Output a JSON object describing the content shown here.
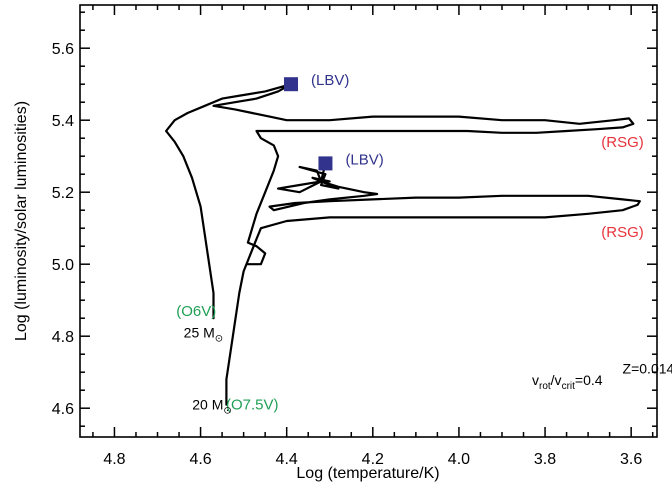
{
  "chart_data": {
    "type": "line",
    "title": "",
    "xlabel": "Log (temperature/K)",
    "ylabel": "Log (luminosity/solar luminosities)",
    "xlim": [
      4.88,
      3.54
    ],
    "ylim": [
      4.52,
      5.72
    ],
    "x_inverted": true,
    "x_ticks": [
      "4.8",
      "4.6",
      "4.4",
      "4.2",
      "4.0",
      "3.8",
      "3.6"
    ],
    "y_ticks": [
      "4.6",
      "4.8",
      "5.0",
      "5.2",
      "5.4",
      "5.6"
    ],
    "legend": "none",
    "series": [
      {
        "name": "25 M⊙",
        "points": [
          [
            4.57,
            4.85
          ],
          [
            4.57,
            4.92
          ],
          [
            4.58,
            5.0
          ],
          [
            4.59,
            5.08
          ],
          [
            4.6,
            5.16
          ],
          [
            4.62,
            5.24
          ],
          [
            4.64,
            5.3
          ],
          [
            4.66,
            5.34
          ],
          [
            4.68,
            5.37
          ],
          [
            4.66,
            5.4
          ],
          [
            4.63,
            5.42
          ],
          [
            4.59,
            5.44
          ],
          [
            4.55,
            5.46
          ],
          [
            4.5,
            5.47
          ],
          [
            4.45,
            5.48
          ],
          [
            4.42,
            5.49
          ],
          [
            4.39,
            5.5
          ],
          [
            4.42,
            5.48
          ],
          [
            4.47,
            5.46
          ],
          [
            4.52,
            5.45
          ],
          [
            4.57,
            5.44
          ],
          [
            4.52,
            5.43
          ],
          [
            4.48,
            5.42
          ],
          [
            4.44,
            5.41
          ],
          [
            4.4,
            5.4
          ],
          [
            4.3,
            5.4
          ],
          [
            4.2,
            5.41
          ],
          [
            4.1,
            5.41
          ],
          [
            4.0,
            5.41
          ],
          [
            3.9,
            5.4
          ],
          [
            3.8,
            5.4
          ],
          [
            3.72,
            5.39
          ],
          [
            3.64,
            5.4
          ],
          [
            3.605,
            5.405
          ],
          [
            3.595,
            5.39
          ],
          [
            3.62,
            5.38
          ],
          [
            3.68,
            5.375
          ],
          [
            3.75,
            5.37
          ],
          [
            3.82,
            5.365
          ],
          [
            3.9,
            5.365
          ],
          [
            3.98,
            5.37
          ],
          [
            4.06,
            5.37
          ],
          [
            4.14,
            5.37
          ],
          [
            4.22,
            5.37
          ],
          [
            4.3,
            5.37
          ],
          [
            4.38,
            5.37
          ],
          [
            4.44,
            5.37
          ],
          [
            4.47,
            5.37
          ],
          [
            4.46,
            5.35
          ],
          [
            4.43,
            5.33
          ],
          [
            4.42,
            5.3
          ],
          [
            4.43,
            5.26
          ],
          [
            4.45,
            5.2
          ],
          [
            4.47,
            5.14
          ],
          [
            4.48,
            5.1
          ],
          [
            4.49,
            5.06
          ],
          [
            4.47,
            5.05
          ],
          [
            4.45,
            5.03
          ],
          [
            4.46,
            5.0
          ],
          [
            4.49,
            5.0
          ]
        ]
      },
      {
        "name": "20 M⊙",
        "points": [
          [
            4.54,
            4.61
          ],
          [
            4.54,
            4.68
          ],
          [
            4.53,
            4.76
          ],
          [
            4.52,
            4.84
          ],
          [
            4.51,
            4.92
          ],
          [
            4.5,
            4.98
          ],
          [
            4.48,
            5.04
          ],
          [
            4.47,
            5.07
          ],
          [
            4.46,
            5.1
          ],
          [
            4.4,
            5.12
          ],
          [
            4.3,
            5.13
          ],
          [
            4.2,
            5.13
          ],
          [
            4.1,
            5.13
          ],
          [
            4.0,
            5.13
          ],
          [
            3.9,
            5.13
          ],
          [
            3.8,
            5.13
          ],
          [
            3.7,
            5.14
          ],
          [
            3.62,
            5.15
          ],
          [
            3.585,
            5.165
          ],
          [
            3.58,
            5.175
          ],
          [
            3.62,
            5.18
          ],
          [
            3.7,
            5.19
          ],
          [
            3.8,
            5.19
          ],
          [
            3.9,
            5.19
          ],
          [
            4.0,
            5.185
          ],
          [
            4.1,
            5.185
          ],
          [
            4.2,
            5.18
          ],
          [
            4.3,
            5.175
          ],
          [
            4.38,
            5.17
          ],
          [
            4.44,
            5.16
          ],
          [
            4.43,
            5.15
          ],
          [
            4.36,
            5.17
          ],
          [
            4.3,
            5.18
          ],
          [
            4.22,
            5.19
          ],
          [
            4.19,
            5.195
          ],
          [
            4.22,
            5.2
          ],
          [
            4.28,
            5.215
          ],
          [
            4.32,
            5.23
          ],
          [
            4.3,
            5.23
          ],
          [
            4.34,
            5.24
          ],
          [
            4.28,
            5.21
          ],
          [
            4.32,
            5.22
          ],
          [
            4.31,
            5.25
          ],
          [
            4.37,
            5.27
          ],
          [
            4.33,
            5.26
          ],
          [
            4.32,
            5.23
          ],
          [
            4.37,
            5.2
          ],
          [
            4.42,
            5.21
          ],
          [
            4.37,
            5.22
          ],
          [
            4.32,
            5.23
          ],
          [
            4.31,
            5.28
          ]
        ]
      }
    ],
    "markers": [
      {
        "x": 4.39,
        "y": 5.5,
        "label": "(LBV)",
        "color": "#31338c"
      },
      {
        "x": 4.31,
        "y": 5.28,
        "label": "(LBV)",
        "color": "#31338c"
      }
    ],
    "annotations": [
      {
        "text": "(RSG)",
        "x": 3.62,
        "y": 5.34,
        "color": "#e8323c"
      },
      {
        "text": "(RSG)",
        "x": 3.62,
        "y": 5.09,
        "color": "#e8323c"
      },
      {
        "text": "(O6V)",
        "x": 4.61,
        "y": 4.87,
        "color": "#1f9f55"
      },
      {
        "text": "(O7.5V)",
        "x": 4.48,
        "y": 4.61,
        "color": "#1f9f55"
      },
      {
        "text": "25 M",
        "x": 4.58,
        "y": 4.81,
        "color": "#000000"
      },
      {
        "text": "20 M",
        "x": 4.56,
        "y": 4.61,
        "color": "#000000"
      },
      {
        "text": "Z=0.014",
        "x": 3.62,
        "y": 4.71,
        "color": "#000000"
      }
    ],
    "velocity_label": {
      "v": "v",
      "rot": "rot",
      "slash": "/v",
      "crit": "crit",
      "value": "=0.4"
    },
    "sun_symbol": "⊙"
  }
}
